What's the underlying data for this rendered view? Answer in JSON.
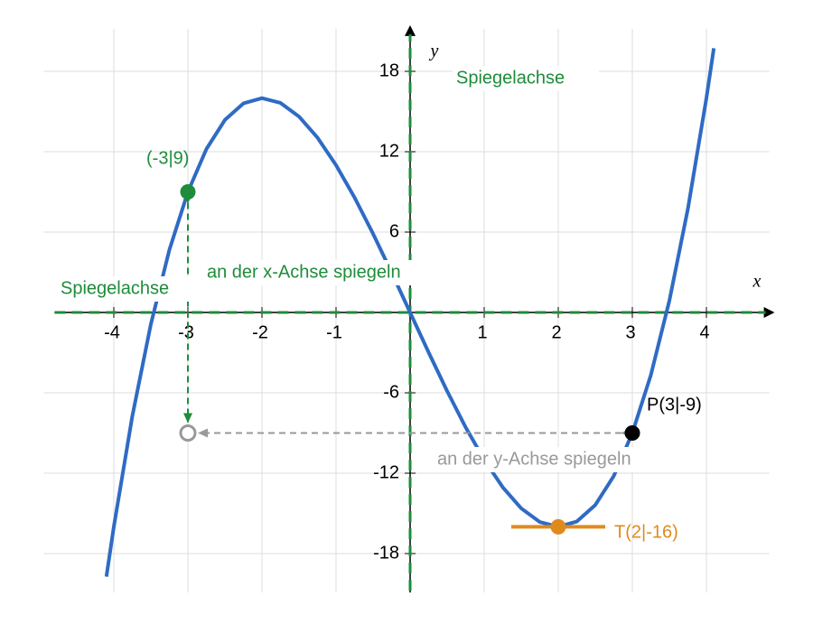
{
  "chart_data": {
    "type": "line",
    "xlabel": "x",
    "ylabel": "y",
    "xlim": [
      -4.8,
      4.8
    ],
    "ylim": [
      -20.5,
      20.5
    ],
    "xticks": [
      -4,
      -3,
      -2,
      -1,
      1,
      2,
      3,
      4
    ],
    "yticks": [
      -18,
      -12,
      -6,
      6,
      12,
      18
    ],
    "grid": true,
    "series": [
      {
        "color": "#2f6bc4",
        "x": [
          -4.1,
          -4,
          -3.75,
          -3.5,
          -3.25,
          -3,
          -2.75,
          -2.5,
          -2.25,
          -2,
          -1.75,
          -1.5,
          -1.25,
          -1,
          -0.75,
          -0.5,
          -0.25,
          0,
          0.25,
          0.5,
          0.75,
          1,
          1.25,
          1.5,
          1.75,
          2,
          2.25,
          2.5,
          2.75,
          3,
          3.25,
          3.5,
          3.75,
          4,
          4.1
        ],
        "values": [
          -19.721,
          -16,
          -7.734,
          -0.875,
          4.672,
          9,
          12.203,
          14.375,
          15.609,
          16,
          15.641,
          14.625,
          13.047,
          11,
          8.578,
          5.875,
          2.984,
          0,
          -2.984,
          -5.875,
          -8.578,
          -11,
          -13.047,
          -14.625,
          -15.641,
          -16,
          -15.609,
          -14.375,
          -12.203,
          -9,
          -4.672,
          0.875,
          7.734,
          16,
          19.721
        ]
      }
    ],
    "points": [
      {
        "label": "(-3|9)",
        "x": -3,
        "y": 9,
        "color": "#1e8c3a"
      },
      {
        "x": -3,
        "y": -9,
        "color": "#999999"
      },
      {
        "label": "P(3|-9)",
        "x": 3,
        "y": -9,
        "color": "#000000"
      },
      {
        "label": "T(2|-16)",
        "x": 2,
        "y": -16,
        "color": "#e08a1e"
      }
    ],
    "annotations": [
      {
        "text": "Spiegelachse",
        "color": "#1e8c3a"
      },
      {
        "text": "an der x-Achse spiegeln",
        "color": "#1e8c3a"
      },
      {
        "text": "Spiegelachse",
        "color": "#1e8c3a"
      },
      {
        "text": "an der y-Achse spiegeln",
        "color": "#999999"
      }
    ]
  }
}
